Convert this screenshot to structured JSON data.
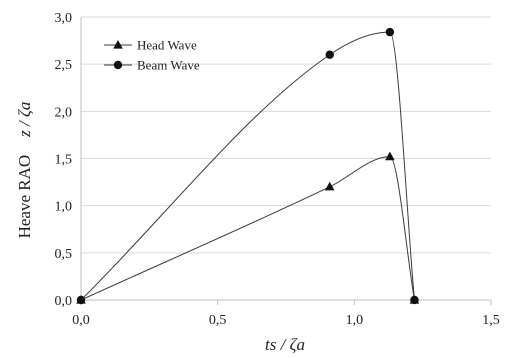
{
  "chart_data": {
    "type": "line",
    "x_axis": {
      "min": 0.0,
      "max": 1.5,
      "ticks": [
        0.0,
        0.5,
        1.0,
        1.5
      ],
      "tick_labels": [
        "0,0",
        "0,5",
        "1,0",
        "1,5"
      ],
      "label": "ts / ζa"
    },
    "y_axis": {
      "min": 0.0,
      "max": 3.0,
      "ticks": [
        0.0,
        0.5,
        1.0,
        1.5,
        2.0,
        2.5,
        3.0
      ],
      "tick_labels": [
        "0,0",
        "0,5",
        "1,0",
        "1,5",
        "2,0",
        "2,5",
        "3,0"
      ],
      "label_prefix": "Heave RAO",
      "label_suffix": "z / ζa"
    },
    "grid": "horizontal",
    "legend_position": "top-left",
    "series": [
      {
        "name": "Head Wave",
        "marker": "triangle",
        "x": [
          0.0,
          0.91,
          1.13,
          1.22
        ],
        "y": [
          0.0,
          1.2,
          1.52,
          0.0
        ]
      },
      {
        "name": "Beam Wave",
        "marker": "circle",
        "x": [
          0.0,
          0.91,
          1.13,
          1.22
        ],
        "y": [
          0.0,
          2.6,
          2.84,
          0.0
        ]
      }
    ]
  }
}
